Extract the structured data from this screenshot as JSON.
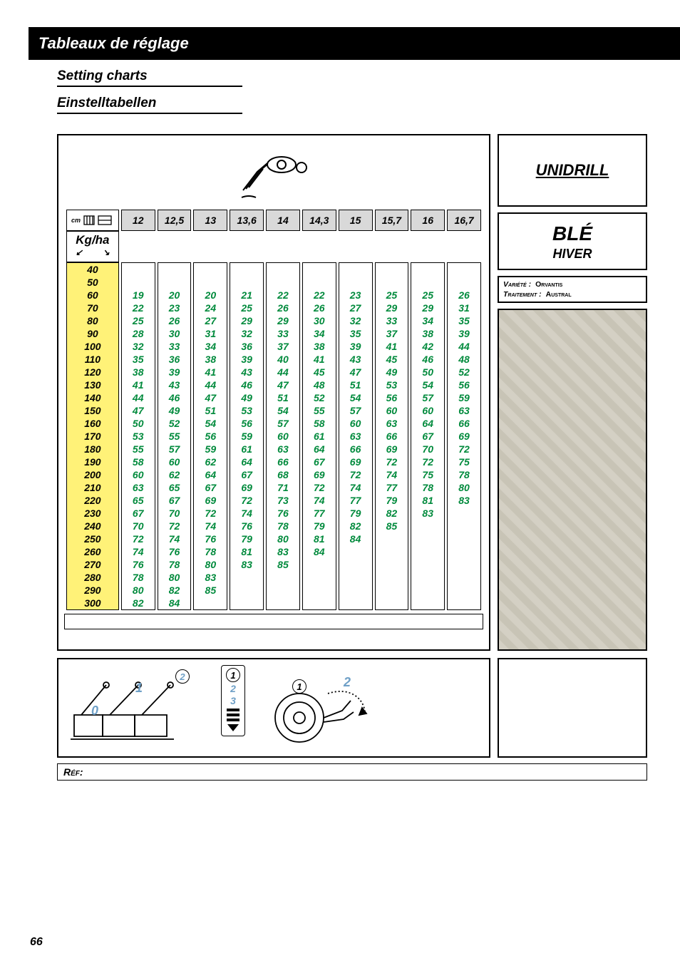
{
  "titles": {
    "black_bar": "Tableaux de réglage",
    "sub1": "Setting charts",
    "sub2": "Einstelltabellen"
  },
  "sidebar": {
    "unidrill": "UNIDRILL",
    "ble": "BLÉ",
    "ble_sub": "HIVER",
    "variete_label": "Variété :",
    "variete_value": "Orvantis",
    "traitement_label": "Traitement :",
    "traitement_value": "Austral"
  },
  "table": {
    "kgha": "Kg/ha",
    "cm": "cm",
    "spacings": [
      "12",
      "12,5",
      "13",
      "13,6",
      "14",
      "14,3",
      "15",
      "15,7",
      "16",
      "16,7"
    ],
    "rates": [
      "40",
      "50",
      "60",
      "70",
      "80",
      "90",
      "100",
      "110",
      "120",
      "130",
      "140",
      "150",
      "160",
      "170",
      "180",
      "190",
      "200",
      "210",
      "220",
      "230",
      "240",
      "250",
      "260",
      "270",
      "280",
      "290",
      "300"
    ],
    "values": [
      [
        "",
        "",
        "",
        "",
        "",
        "",
        "",
        "",
        "",
        ""
      ],
      [
        "",
        "",
        "",
        "",
        "",
        "",
        "",
        "",
        "",
        ""
      ],
      [
        "19",
        "20",
        "20",
        "21",
        "22",
        "22",
        "23",
        "25",
        "25",
        "26"
      ],
      [
        "22",
        "23",
        "24",
        "25",
        "26",
        "26",
        "27",
        "29",
        "29",
        "31"
      ],
      [
        "25",
        "26",
        "27",
        "29",
        "29",
        "30",
        "32",
        "33",
        "34",
        "35"
      ],
      [
        "28",
        "30",
        "31",
        "32",
        "33",
        "34",
        "35",
        "37",
        "38",
        "39"
      ],
      [
        "32",
        "33",
        "34",
        "36",
        "37",
        "38",
        "39",
        "41",
        "42",
        "44"
      ],
      [
        "35",
        "36",
        "38",
        "39",
        "40",
        "41",
        "43",
        "45",
        "46",
        "48"
      ],
      [
        "38",
        "39",
        "41",
        "43",
        "44",
        "45",
        "47",
        "49",
        "50",
        "52"
      ],
      [
        "41",
        "43",
        "44",
        "46",
        "47",
        "48",
        "51",
        "53",
        "54",
        "56"
      ],
      [
        "44",
        "46",
        "47",
        "49",
        "51",
        "52",
        "54",
        "56",
        "57",
        "59"
      ],
      [
        "47",
        "49",
        "51",
        "53",
        "54",
        "55",
        "57",
        "60",
        "60",
        "63"
      ],
      [
        "50",
        "52",
        "54",
        "56",
        "57",
        "58",
        "60",
        "63",
        "64",
        "66"
      ],
      [
        "53",
        "55",
        "56",
        "59",
        "60",
        "61",
        "63",
        "66",
        "67",
        "69"
      ],
      [
        "55",
        "57",
        "59",
        "61",
        "63",
        "64",
        "66",
        "69",
        "70",
        "72"
      ],
      [
        "58",
        "60",
        "62",
        "64",
        "66",
        "67",
        "69",
        "72",
        "72",
        "75"
      ],
      [
        "60",
        "62",
        "64",
        "67",
        "68",
        "69",
        "72",
        "74",
        "75",
        "78"
      ],
      [
        "63",
        "65",
        "67",
        "69",
        "71",
        "72",
        "74",
        "77",
        "78",
        "80"
      ],
      [
        "65",
        "67",
        "69",
        "72",
        "73",
        "74",
        "77",
        "79",
        "81",
        "83"
      ],
      [
        "67",
        "70",
        "72",
        "74",
        "76",
        "77",
        "79",
        "82",
        "83",
        ""
      ],
      [
        "70",
        "72",
        "74",
        "76",
        "78",
        "79",
        "82",
        "85",
        "",
        ""
      ],
      [
        "72",
        "74",
        "76",
        "79",
        "80",
        "81",
        "84",
        "",
        "",
        ""
      ],
      [
        "74",
        "76",
        "78",
        "81",
        "83",
        "84",
        "",
        "",
        "",
        ""
      ],
      [
        "76",
        "78",
        "80",
        "83",
        "85",
        "",
        "",
        "",
        "",
        ""
      ],
      [
        "78",
        "80",
        "83",
        "",
        "",
        "",
        "",
        "",
        "",
        ""
      ],
      [
        "80",
        "82",
        "85",
        "",
        "",
        "",
        "",
        "",
        "",
        ""
      ],
      [
        "82",
        "84",
        "",
        "",
        "",
        "",
        "",
        "",
        "",
        ""
      ]
    ]
  },
  "footer": {
    "ref": "Réf:",
    "page": "66"
  },
  "diagram": {
    "lever0": "0",
    "lever1": "1",
    "circ2": "2",
    "scale": [
      "1",
      "2",
      "3"
    ],
    "wheel1": "1",
    "wheel2": "2"
  },
  "colors": {
    "rate_bg": "#fff278",
    "value_text": "#008a3c",
    "header_bg": "#d9d9d9",
    "blue": "#6fa0c7"
  }
}
